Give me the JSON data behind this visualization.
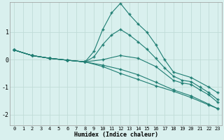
{
  "xlabel": "Humidex (Indice chaleur)",
  "background_color": "#d9f0ee",
  "grid_color": "#c0dcd8",
  "line_color": "#1e7d72",
  "xlim": [
    -0.5,
    23.5
  ],
  "ylim": [
    -2.4,
    2.1
  ],
  "xtick_labels": [
    "0",
    "1",
    "2",
    "3",
    "4",
    "5",
    "6",
    "7",
    "8",
    "9",
    "10",
    "11",
    "12",
    "13",
    "14",
    "15",
    "16",
    "17",
    "18",
    "19",
    "20",
    "21",
    "22",
    "23"
  ],
  "xtick_vals": [
    0,
    1,
    2,
    3,
    4,
    5,
    6,
    7,
    8,
    9,
    10,
    11,
    12,
    13,
    14,
    15,
    16,
    17,
    18,
    19,
    20,
    21,
    22,
    23
  ],
  "ytick_vals": [
    -2,
    -1,
    0,
    1
  ],
  "lines": [
    {
      "x": [
        0,
        2,
        4,
        6,
        8,
        10,
        12,
        14,
        16,
        18,
        20,
        22,
        23
      ],
      "y": [
        0.35,
        0.15,
        0.05,
        -0.02,
        -0.08,
        -0.25,
        -0.5,
        -0.72,
        -0.95,
        -1.15,
        -1.38,
        -1.65,
        -1.78
      ]
    },
    {
      "x": [
        0,
        2,
        4,
        6,
        8,
        9,
        10,
        11,
        12,
        13,
        14,
        15,
        16,
        17,
        18,
        20,
        22,
        23
      ],
      "y": [
        0.35,
        0.15,
        0.05,
        -0.02,
        -0.08,
        0.3,
        1.1,
        1.7,
        2.05,
        1.65,
        1.3,
        1.0,
        0.55,
        0.0,
        -0.45,
        -0.65,
        -1.0,
        -1.2
      ]
    },
    {
      "x": [
        0,
        2,
        4,
        6,
        8,
        9,
        10,
        11,
        12,
        13,
        14,
        15,
        16,
        17,
        18,
        19,
        20,
        21,
        22,
        23
      ],
      "y": [
        0.35,
        0.15,
        0.05,
        -0.02,
        -0.08,
        0.1,
        0.55,
        0.9,
        1.1,
        0.9,
        0.65,
        0.38,
        0.05,
        -0.3,
        -0.6,
        -0.75,
        -0.8,
        -1.0,
        -1.2,
        -1.45
      ]
    },
    {
      "x": [
        0,
        2,
        4,
        6,
        8,
        10,
        12,
        14,
        16,
        18,
        19,
        20,
        21,
        22,
        23
      ],
      "y": [
        0.35,
        0.15,
        0.05,
        -0.02,
        -0.08,
        0.0,
        0.15,
        0.05,
        -0.25,
        -0.75,
        -0.85,
        -0.9,
        -1.1,
        -1.28,
        -1.55
      ]
    },
    {
      "x": [
        0,
        2,
        4,
        6,
        8,
        10,
        12,
        14,
        16,
        18,
        20,
        22,
        23
      ],
      "y": [
        0.35,
        0.15,
        0.05,
        -0.02,
        -0.08,
        -0.2,
        -0.35,
        -0.55,
        -0.82,
        -1.1,
        -1.32,
        -1.62,
        -1.78
      ]
    }
  ]
}
